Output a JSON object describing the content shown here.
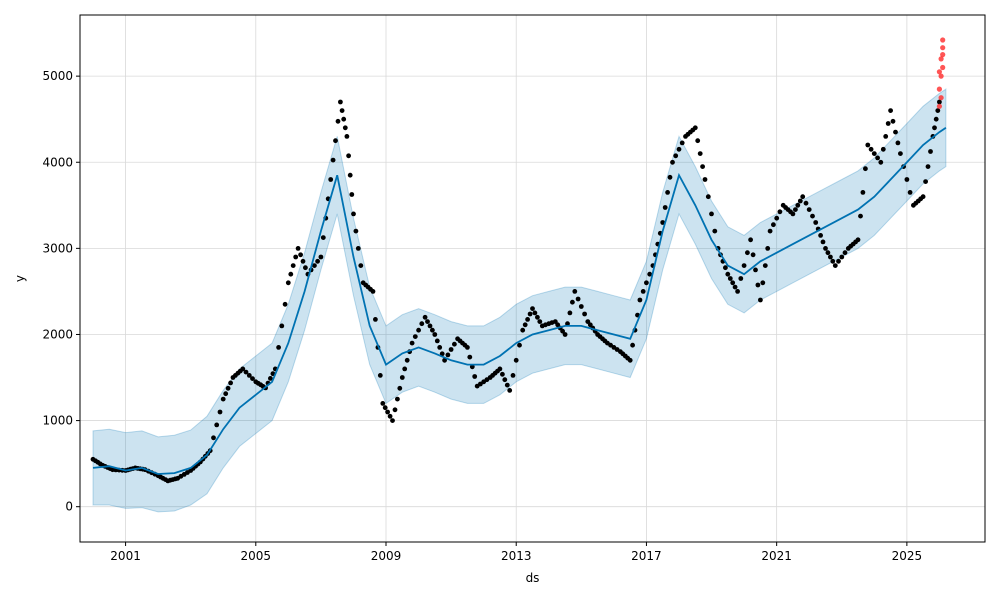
{
  "chart_data": {
    "type": "line",
    "title": "",
    "xlabel": "ds",
    "ylabel": "y",
    "xlim": [
      1999.6,
      2027.4
    ],
    "ylim": [
      -410,
      5710
    ],
    "grid": true,
    "legend": "none",
    "x_ticks": [
      {
        "value": 2001,
        "label": "2001"
      },
      {
        "value": 2005,
        "label": "2005"
      },
      {
        "value": 2009,
        "label": "2009"
      },
      {
        "value": 2013,
        "label": "2013"
      },
      {
        "value": 2017,
        "label": "2017"
      },
      {
        "value": 2021,
        "label": "2021"
      },
      {
        "value": 2025,
        "label": "2025"
      }
    ],
    "y_ticks": [
      {
        "value": 0,
        "label": "0"
      },
      {
        "value": 1000,
        "label": "1000"
      },
      {
        "value": 2000,
        "label": "2000"
      },
      {
        "value": 3000,
        "label": "3000"
      },
      {
        "value": 4000,
        "label": "4000"
      },
      {
        "value": 5000,
        "label": "5000"
      }
    ],
    "colors": {
      "observed": "#000000",
      "forecast_line": "#0072B2",
      "uncertainty_band": "#0072B2",
      "anomalies": "#ff2b2b",
      "grid": "#d9d9d9"
    },
    "series": [
      {
        "kind": "forecast",
        "x": [
          2000.0,
          2000.5,
          2001.0,
          2001.5,
          2002.0,
          2002.5,
          2003.0,
          2003.5,
          2004.0,
          2004.5,
          2005.0,
          2005.5,
          2006.0,
          2006.5,
          2007.0,
          2007.5,
          2008.0,
          2008.5,
          2009.0,
          2009.5,
          2010.0,
          2010.5,
          2011.0,
          2011.5,
          2012.0,
          2012.5,
          2013.0,
          2013.5,
          2014.0,
          2014.5,
          2015.0,
          2015.5,
          2016.0,
          2016.5,
          2017.0,
          2017.5,
          2018.0,
          2018.5,
          2019.0,
          2019.5,
          2020.0,
          2020.5,
          2021.0,
          2021.5,
          2022.0,
          2022.5,
          2023.0,
          2023.5,
          2024.0,
          2024.5,
          2025.0,
          2025.5,
          2026.0,
          2026.2
        ],
        "y": [
          450,
          470,
          420,
          450,
          380,
          390,
          450,
          600,
          900,
          1150,
          1300,
          1450,
          1900,
          2500,
          3200,
          3850,
          2900,
          2100,
          1650,
          1780,
          1850,
          1780,
          1700,
          1650,
          1650,
          1750,
          1900,
          2000,
          2050,
          2100,
          2100,
          2050,
          2000,
          1950,
          2400,
          3200,
          3850,
          3500,
          3100,
          2800,
          2700,
          2850,
          2950,
          3050,
          3150,
          3250,
          3350,
          3450,
          3600,
          3800,
          4000,
          4200,
          4350,
          4400
        ],
        "lower": [
          20,
          20,
          -20,
          -10,
          -60,
          -50,
          20,
          150,
          450,
          700,
          850,
          1000,
          1450,
          2050,
          2750,
          3400,
          2450,
          1650,
          1200,
          1330,
          1400,
          1330,
          1250,
          1200,
          1200,
          1300,
          1450,
          1550,
          1600,
          1650,
          1650,
          1600,
          1550,
          1500,
          1950,
          2750,
          3400,
          3050,
          2650,
          2350,
          2250,
          2400,
          2500,
          2600,
          2700,
          2800,
          2900,
          3000,
          3150,
          3350,
          3550,
          3750,
          3900,
          3950
        ],
        "upper": [
          880,
          900,
          860,
          880,
          810,
          830,
          890,
          1050,
          1350,
          1600,
          1750,
          1900,
          2350,
          2950,
          3650,
          4300,
          3350,
          2550,
          2100,
          2230,
          2300,
          2230,
          2150,
          2100,
          2100,
          2200,
          2350,
          2450,
          2500,
          2550,
          2550,
          2500,
          2450,
          2400,
          2850,
          3650,
          4300,
          3950,
          3550,
          3250,
          3150,
          3300,
          3400,
          3500,
          3600,
          3700,
          3800,
          3900,
          4050,
          4250,
          4450,
          4650,
          4800,
          4850
        ]
      },
      {
        "kind": "observed",
        "x": [
          2000.0,
          2000.3,
          2000.6,
          2001.0,
          2001.3,
          2001.6,
          2002.0,
          2002.3,
          2002.6,
          2003.0,
          2003.3,
          2003.6,
          2004.0,
          2004.3,
          2004.6,
          2005.0,
          2005.3,
          2005.6,
          2006.0,
          2006.3,
          2006.6,
          2007.0,
          2007.3,
          2007.6,
          2007.8,
          2008.0,
          2008.3,
          2008.6,
          2008.9,
          2009.2,
          2009.5,
          2009.8,
          2010.2,
          2010.5,
          2010.8,
          2011.2,
          2011.5,
          2011.8,
          2012.2,
          2012.5,
          2012.8,
          2013.2,
          2013.5,
          2013.8,
          2014.2,
          2014.5,
          2014.8,
          2015.2,
          2015.5,
          2015.8,
          2016.2,
          2016.5,
          2016.8,
          2017.2,
          2017.5,
          2017.8,
          2018.2,
          2018.5,
          2018.8,
          2019.2,
          2019.5,
          2019.8,
          2020.2,
          2020.5,
          2020.8,
          2021.2,
          2021.5,
          2021.8,
          2022.2,
          2022.5,
          2022.8,
          2023.2,
          2023.5,
          2023.8,
          2024.2,
          2024.5,
          2024.8,
          2025.2,
          2025.5,
          2025.8,
          2026.0
        ],
        "y": [
          550,
          480,
          430,
          420,
          450,
          430,
          360,
          300,
          330,
          420,
          520,
          650,
          1250,
          1500,
          1600,
          1450,
          1380,
          1600,
          2600,
          3000,
          2700,
          2900,
          3800,
          4700,
          4300,
          3400,
          2600,
          2500,
          1200,
          1000,
          1500,
          1900,
          2200,
          2000,
          1700,
          1950,
          1850,
          1400,
          1500,
          1600,
          1350,
          2050,
          2300,
          2100,
          2150,
          2000,
          2500,
          2150,
          2000,
          1900,
          1800,
          1700,
          2400,
          2800,
          3300,
          4000,
          4300,
          4400,
          3800,
          3000,
          2700,
          2500,
          3100,
          2400,
          3200,
          3500,
          3400,
          3600,
          3300,
          3000,
          2800,
          3000,
          3100,
          4200,
          4000,
          4600,
          4100,
          3500,
          3600,
          4300,
          4700
        ]
      },
      {
        "kind": "anomalies",
        "x": [
          2026.0,
          2026.0,
          2026.0,
          2026.05,
          2026.05,
          2026.05,
          2026.1,
          2026.1,
          2026.1,
          2026.1
        ],
        "y": [
          4650,
          4850,
          5050,
          4750,
          5000,
          5200,
          5100,
          5250,
          5330,
          5420
        ]
      }
    ]
  }
}
